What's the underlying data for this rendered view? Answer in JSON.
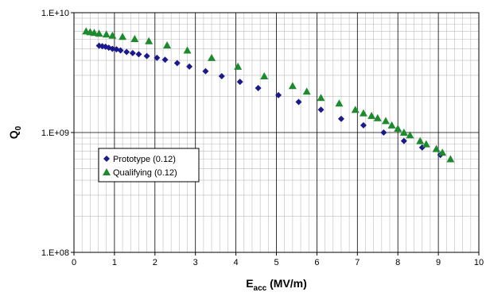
{
  "chart_data": {
    "type": "scatter",
    "title": "",
    "xlabel": {
      "main": "E",
      "sub": "acc",
      "rest": " (MV/m)"
    },
    "ylabel": {
      "main": "Q",
      "sub": "0"
    },
    "xlim": [
      0,
      10
    ],
    "ylim": [
      100000000,
      10000000000
    ],
    "yscale": "log",
    "grid": true,
    "minor_grid": true,
    "legend_position": "center-left",
    "x_ticks": [
      "0",
      "1",
      "2",
      "3",
      "4",
      "5",
      "6",
      "7",
      "8",
      "9",
      "10"
    ],
    "y_ticks": [
      {
        "value": 100000000,
        "label": "1.E+08"
      },
      {
        "value": 1000000000,
        "label": "1.E+09"
      },
      {
        "value": 10000000000,
        "label": "1.E+10"
      }
    ],
    "series": [
      {
        "name": "Prototype (0.12)",
        "marker": "diamond",
        "color": "#1a1a8c",
        "points": [
          [
            0.62,
            5300000000.0
          ],
          [
            0.7,
            5250000000.0
          ],
          [
            0.78,
            5200000000.0
          ],
          [
            0.86,
            5100000000.0
          ],
          [
            0.95,
            5000000000.0
          ],
          [
            1.05,
            4950000000.0
          ],
          [
            1.15,
            4850000000.0
          ],
          [
            1.3,
            4700000000.0
          ],
          [
            1.45,
            4600000000.0
          ],
          [
            1.6,
            4500000000.0
          ],
          [
            1.8,
            4350000000.0
          ],
          [
            2.05,
            4200000000.0
          ],
          [
            2.25,
            4050000000.0
          ],
          [
            2.55,
            3800000000.0
          ],
          [
            2.85,
            3550000000.0
          ],
          [
            3.25,
            3250000000.0
          ],
          [
            3.65,
            2950000000.0
          ],
          [
            4.1,
            2650000000.0
          ],
          [
            4.55,
            2350000000.0
          ],
          [
            5.05,
            2050000000.0
          ],
          [
            5.55,
            1800000000.0
          ],
          [
            6.1,
            1550000000.0
          ],
          [
            6.6,
            1300000000.0
          ],
          [
            7.15,
            1150000000.0
          ],
          [
            7.65,
            1000000000.0
          ],
          [
            8.15,
            850000000.0
          ],
          [
            8.6,
            750000000.0
          ],
          [
            9.05,
            650000000.0
          ]
        ]
      },
      {
        "name": "Qualifying (0.12)",
        "marker": "triangle",
        "color": "#1e8a2e",
        "points": [
          [
            0.3,
            7000000000.0
          ],
          [
            0.4,
            6900000000.0
          ],
          [
            0.5,
            6800000000.0
          ],
          [
            0.62,
            6700000000.0
          ],
          [
            0.8,
            6600000000.0
          ],
          [
            0.95,
            6450000000.0
          ],
          [
            1.2,
            6300000000.0
          ],
          [
            1.5,
            6050000000.0
          ],
          [
            1.85,
            5800000000.0
          ],
          [
            2.3,
            5350000000.0
          ],
          [
            2.8,
            4850000000.0
          ],
          [
            3.4,
            4200000000.0
          ],
          [
            4.05,
            3550000000.0
          ],
          [
            4.7,
            2950000000.0
          ],
          [
            5.4,
            2450000000.0
          ],
          [
            5.75,
            2200000000.0
          ],
          [
            6.1,
            1950000000.0
          ],
          [
            6.55,
            1750000000.0
          ],
          [
            6.95,
            1550000000.0
          ],
          [
            7.15,
            1450000000.0
          ],
          [
            7.35,
            1380000000.0
          ],
          [
            7.5,
            1320000000.0
          ],
          [
            7.7,
            1250000000.0
          ],
          [
            7.85,
            1150000000.0
          ],
          [
            8.0,
            1080000000.0
          ],
          [
            8.15,
            1000000000.0
          ],
          [
            8.3,
            950000000.0
          ],
          [
            8.55,
            850000000.0
          ],
          [
            8.7,
            800000000.0
          ],
          [
            8.95,
            730000000.0
          ],
          [
            9.1,
            680000000.0
          ],
          [
            9.3,
            600000000.0
          ]
        ]
      }
    ]
  }
}
